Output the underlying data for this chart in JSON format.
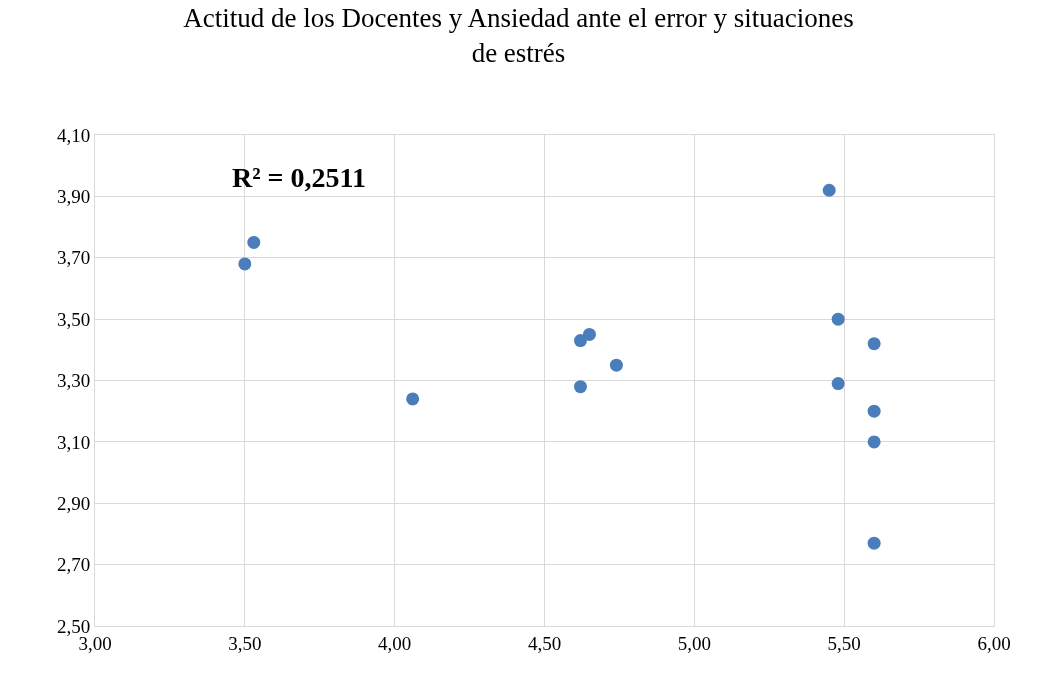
{
  "chart_data": {
    "type": "scatter",
    "title": "Actitud de los Docentes y Ansiedad ante el error y situaciones\nde estrés",
    "annotations": [
      "R² = 0,2511"
    ],
    "series": [
      {
        "color": "#4a7ebb",
        "x": [
          3.53,
          3.5,
          4.06,
          4.62,
          4.62,
          4.65,
          4.74,
          5.45,
          5.48,
          5.48,
          5.6,
          5.6,
          5.6,
          5.6
        ],
        "values": [
          3.75,
          3.68,
          3.24,
          3.28,
          3.43,
          3.45,
          3.35,
          3.92,
          3.5,
          3.29,
          3.42,
          3.2,
          3.1,
          2.77
        ]
      }
    ],
    "xlim": [
      3.0,
      6.0
    ],
    "ylim": [
      2.5,
      4.1
    ],
    "xticks": [
      {
        "value": 3.0,
        "label": "3,00"
      },
      {
        "value": 3.5,
        "label": "3,50"
      },
      {
        "value": 4.0,
        "label": "4,00"
      },
      {
        "value": 4.5,
        "label": "4,50"
      },
      {
        "value": 5.0,
        "label": "5,00"
      },
      {
        "value": 5.5,
        "label": "5,50"
      },
      {
        "value": 6.0,
        "label": "6,00"
      }
    ],
    "yticks": [
      {
        "value": 2.5,
        "label": "2,50"
      },
      {
        "value": 2.7,
        "label": "2,70"
      },
      {
        "value": 2.9,
        "label": "2,90"
      },
      {
        "value": 3.1,
        "label": "3,10"
      },
      {
        "value": 3.3,
        "label": "3,30"
      },
      {
        "value": 3.5,
        "label": "3,50"
      },
      {
        "value": 3.7,
        "label": "3,70"
      },
      {
        "value": 3.9,
        "label": "3,90"
      },
      {
        "value": 4.1,
        "label": "4,10"
      }
    ],
    "grid": true,
    "marker": "circle",
    "legend": false
  }
}
